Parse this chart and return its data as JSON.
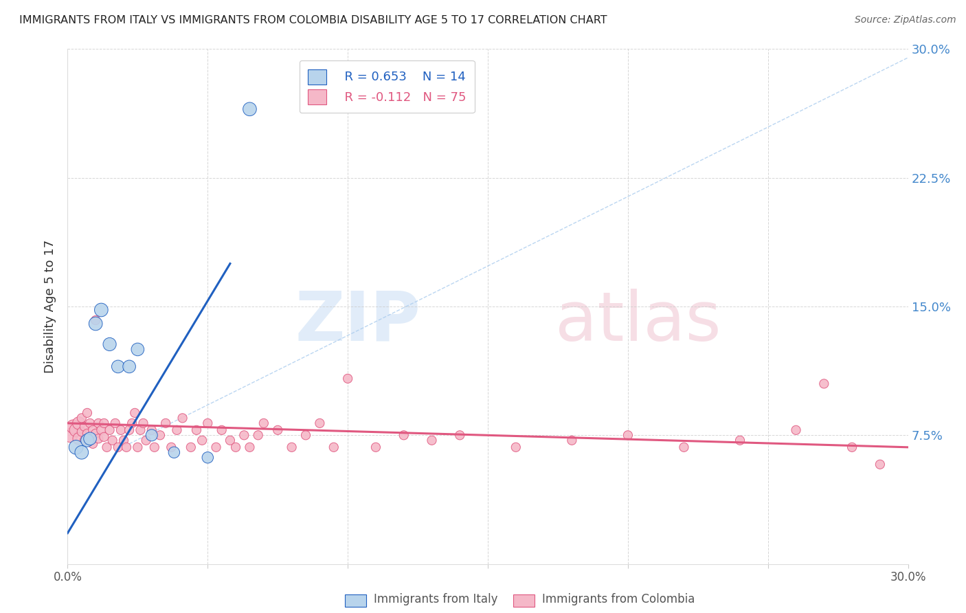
{
  "title": "IMMIGRANTS FROM ITALY VS IMMIGRANTS FROM COLOMBIA DISABILITY AGE 5 TO 17 CORRELATION CHART",
  "source": "Source: ZipAtlas.com",
  "ylabel": "Disability Age 5 to 17",
  "legend_italy": "Immigrants from Italy",
  "legend_colombia": "Immigrants from Colombia",
  "italy_R": "R = 0.653",
  "italy_N": "N = 14",
  "colombia_R": "R = -0.112",
  "colombia_N": "N = 75",
  "italy_color": "#b8d4ec",
  "italy_line_color": "#2060c0",
  "colombia_color": "#f5b8c8",
  "colombia_line_color": "#e05880",
  "right_axis_color": "#4488cc",
  "xlim": [
    0.0,
    0.3
  ],
  "ylim": [
    0.0,
    0.3
  ],
  "ytick_labels": [
    "",
    "7.5%",
    "15.0%",
    "22.5%",
    "30.0%"
  ],
  "ytick_values": [
    0.0,
    0.075,
    0.15,
    0.225,
    0.3
  ],
  "xtick_positions": [
    0.0,
    0.05,
    0.1,
    0.15,
    0.2,
    0.25,
    0.3
  ],
  "italy_x": [
    0.003,
    0.005,
    0.007,
    0.008,
    0.01,
    0.012,
    0.015,
    0.018,
    0.022,
    0.025,
    0.03,
    0.038,
    0.05,
    0.065
  ],
  "italy_y": [
    0.068,
    0.065,
    0.072,
    0.073,
    0.14,
    0.148,
    0.128,
    0.115,
    0.115,
    0.125,
    0.075,
    0.065,
    0.062,
    0.265
  ],
  "colombia_x": [
    0.001,
    0.002,
    0.003,
    0.004,
    0.004,
    0.005,
    0.005,
    0.006,
    0.006,
    0.007,
    0.007,
    0.008,
    0.008,
    0.009,
    0.009,
    0.01,
    0.01,
    0.011,
    0.011,
    0.012,
    0.013,
    0.013,
    0.014,
    0.015,
    0.016,
    0.017,
    0.018,
    0.019,
    0.02,
    0.021,
    0.022,
    0.023,
    0.024,
    0.025,
    0.026,
    0.027,
    0.028,
    0.03,
    0.031,
    0.033,
    0.035,
    0.037,
    0.039,
    0.041,
    0.044,
    0.046,
    0.048,
    0.05,
    0.053,
    0.055,
    0.058,
    0.06,
    0.063,
    0.065,
    0.068,
    0.07,
    0.075,
    0.08,
    0.085,
    0.09,
    0.095,
    0.1,
    0.11,
    0.12,
    0.13,
    0.14,
    0.16,
    0.18,
    0.2,
    0.22,
    0.24,
    0.26,
    0.27,
    0.28,
    0.29
  ],
  "colombia_y": [
    0.075,
    0.08,
    0.078,
    0.082,
    0.073,
    0.077,
    0.085,
    0.072,
    0.08,
    0.076,
    0.088,
    0.074,
    0.082,
    0.078,
    0.07,
    0.076,
    0.142,
    0.073,
    0.082,
    0.078,
    0.074,
    0.082,
    0.068,
    0.078,
    0.072,
    0.082,
    0.068,
    0.078,
    0.072,
    0.068,
    0.078,
    0.082,
    0.088,
    0.068,
    0.078,
    0.082,
    0.072,
    0.078,
    0.068,
    0.075,
    0.082,
    0.068,
    0.078,
    0.085,
    0.068,
    0.078,
    0.072,
    0.082,
    0.068,
    0.078,
    0.072,
    0.068,
    0.075,
    0.068,
    0.075,
    0.082,
    0.078,
    0.068,
    0.075,
    0.082,
    0.068,
    0.108,
    0.068,
    0.075,
    0.072,
    0.075,
    0.068,
    0.072,
    0.075,
    0.068,
    0.072,
    0.078,
    0.105,
    0.068,
    0.058
  ],
  "italy_sizes": [
    220,
    200,
    180,
    180,
    200,
    200,
    190,
    180,
    180,
    180,
    150,
    140,
    140,
    200
  ],
  "colombia_sizes_base": 90,
  "dashed_line_x": [
    0.022,
    0.3
  ],
  "dashed_line_y": [
    0.07,
    0.295
  ]
}
